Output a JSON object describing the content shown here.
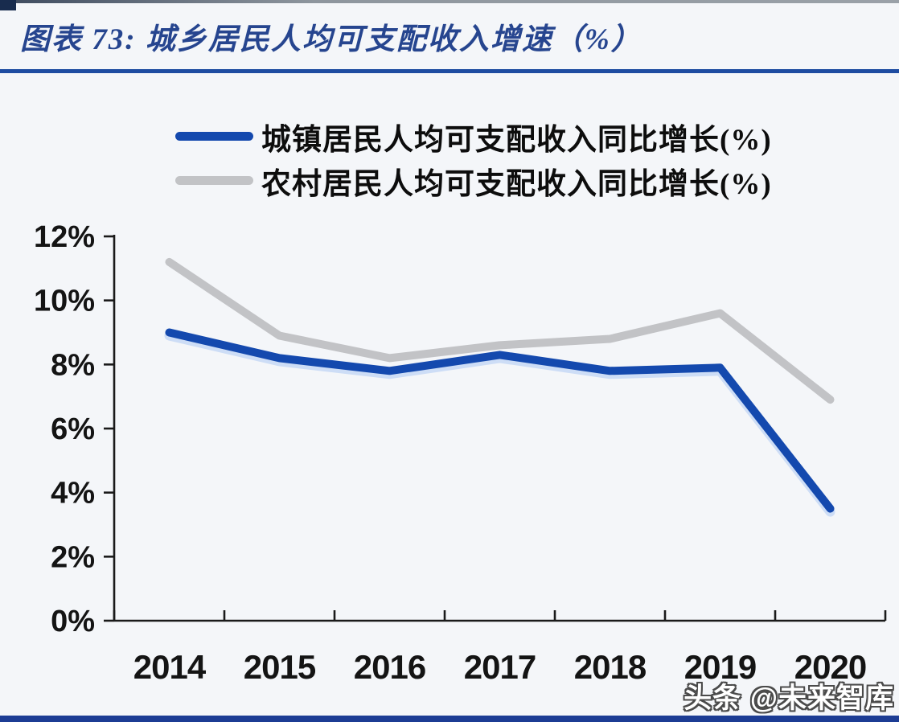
{
  "header": {
    "title": "图表 73:  城乡居民人均可支配收入增速（%）"
  },
  "watermark": {
    "text": "头条 @未来智库"
  },
  "colors": {
    "accent_rule": "#1E4CA1",
    "bottom_bar": "#1C3C94",
    "title_text": "#26458F",
    "axis": "#1a1a1a",
    "urban_line": "#1449AE",
    "rural_line": "#C2C3C6"
  },
  "chart_data": {
    "type": "line",
    "x": [
      "2014",
      "2015",
      "2016",
      "2017",
      "2018",
      "2019",
      "2020"
    ],
    "series": [
      {
        "name": "城镇居民人均可支配收入同比增长(%)",
        "values": [
          9.0,
          8.2,
          7.8,
          8.3,
          7.8,
          7.9,
          3.5
        ],
        "color": "#1449AE"
      },
      {
        "name": "农村居民人均可支配收入同比增长(%)",
        "values": [
          11.2,
          8.9,
          8.2,
          8.6,
          8.8,
          9.6,
          6.9
        ],
        "color": "#C2C3C6"
      }
    ],
    "title": "城乡居民人均可支配收入增速（%）",
    "xlabel": "",
    "ylabel": "",
    "ylim": [
      0,
      12
    ],
    "y_tick_step": 2,
    "y_tick_labels": [
      "0%",
      "2%",
      "4%",
      "6%",
      "8%",
      "10%",
      "12%"
    ],
    "legend_position": "top-left",
    "grid": false
  }
}
